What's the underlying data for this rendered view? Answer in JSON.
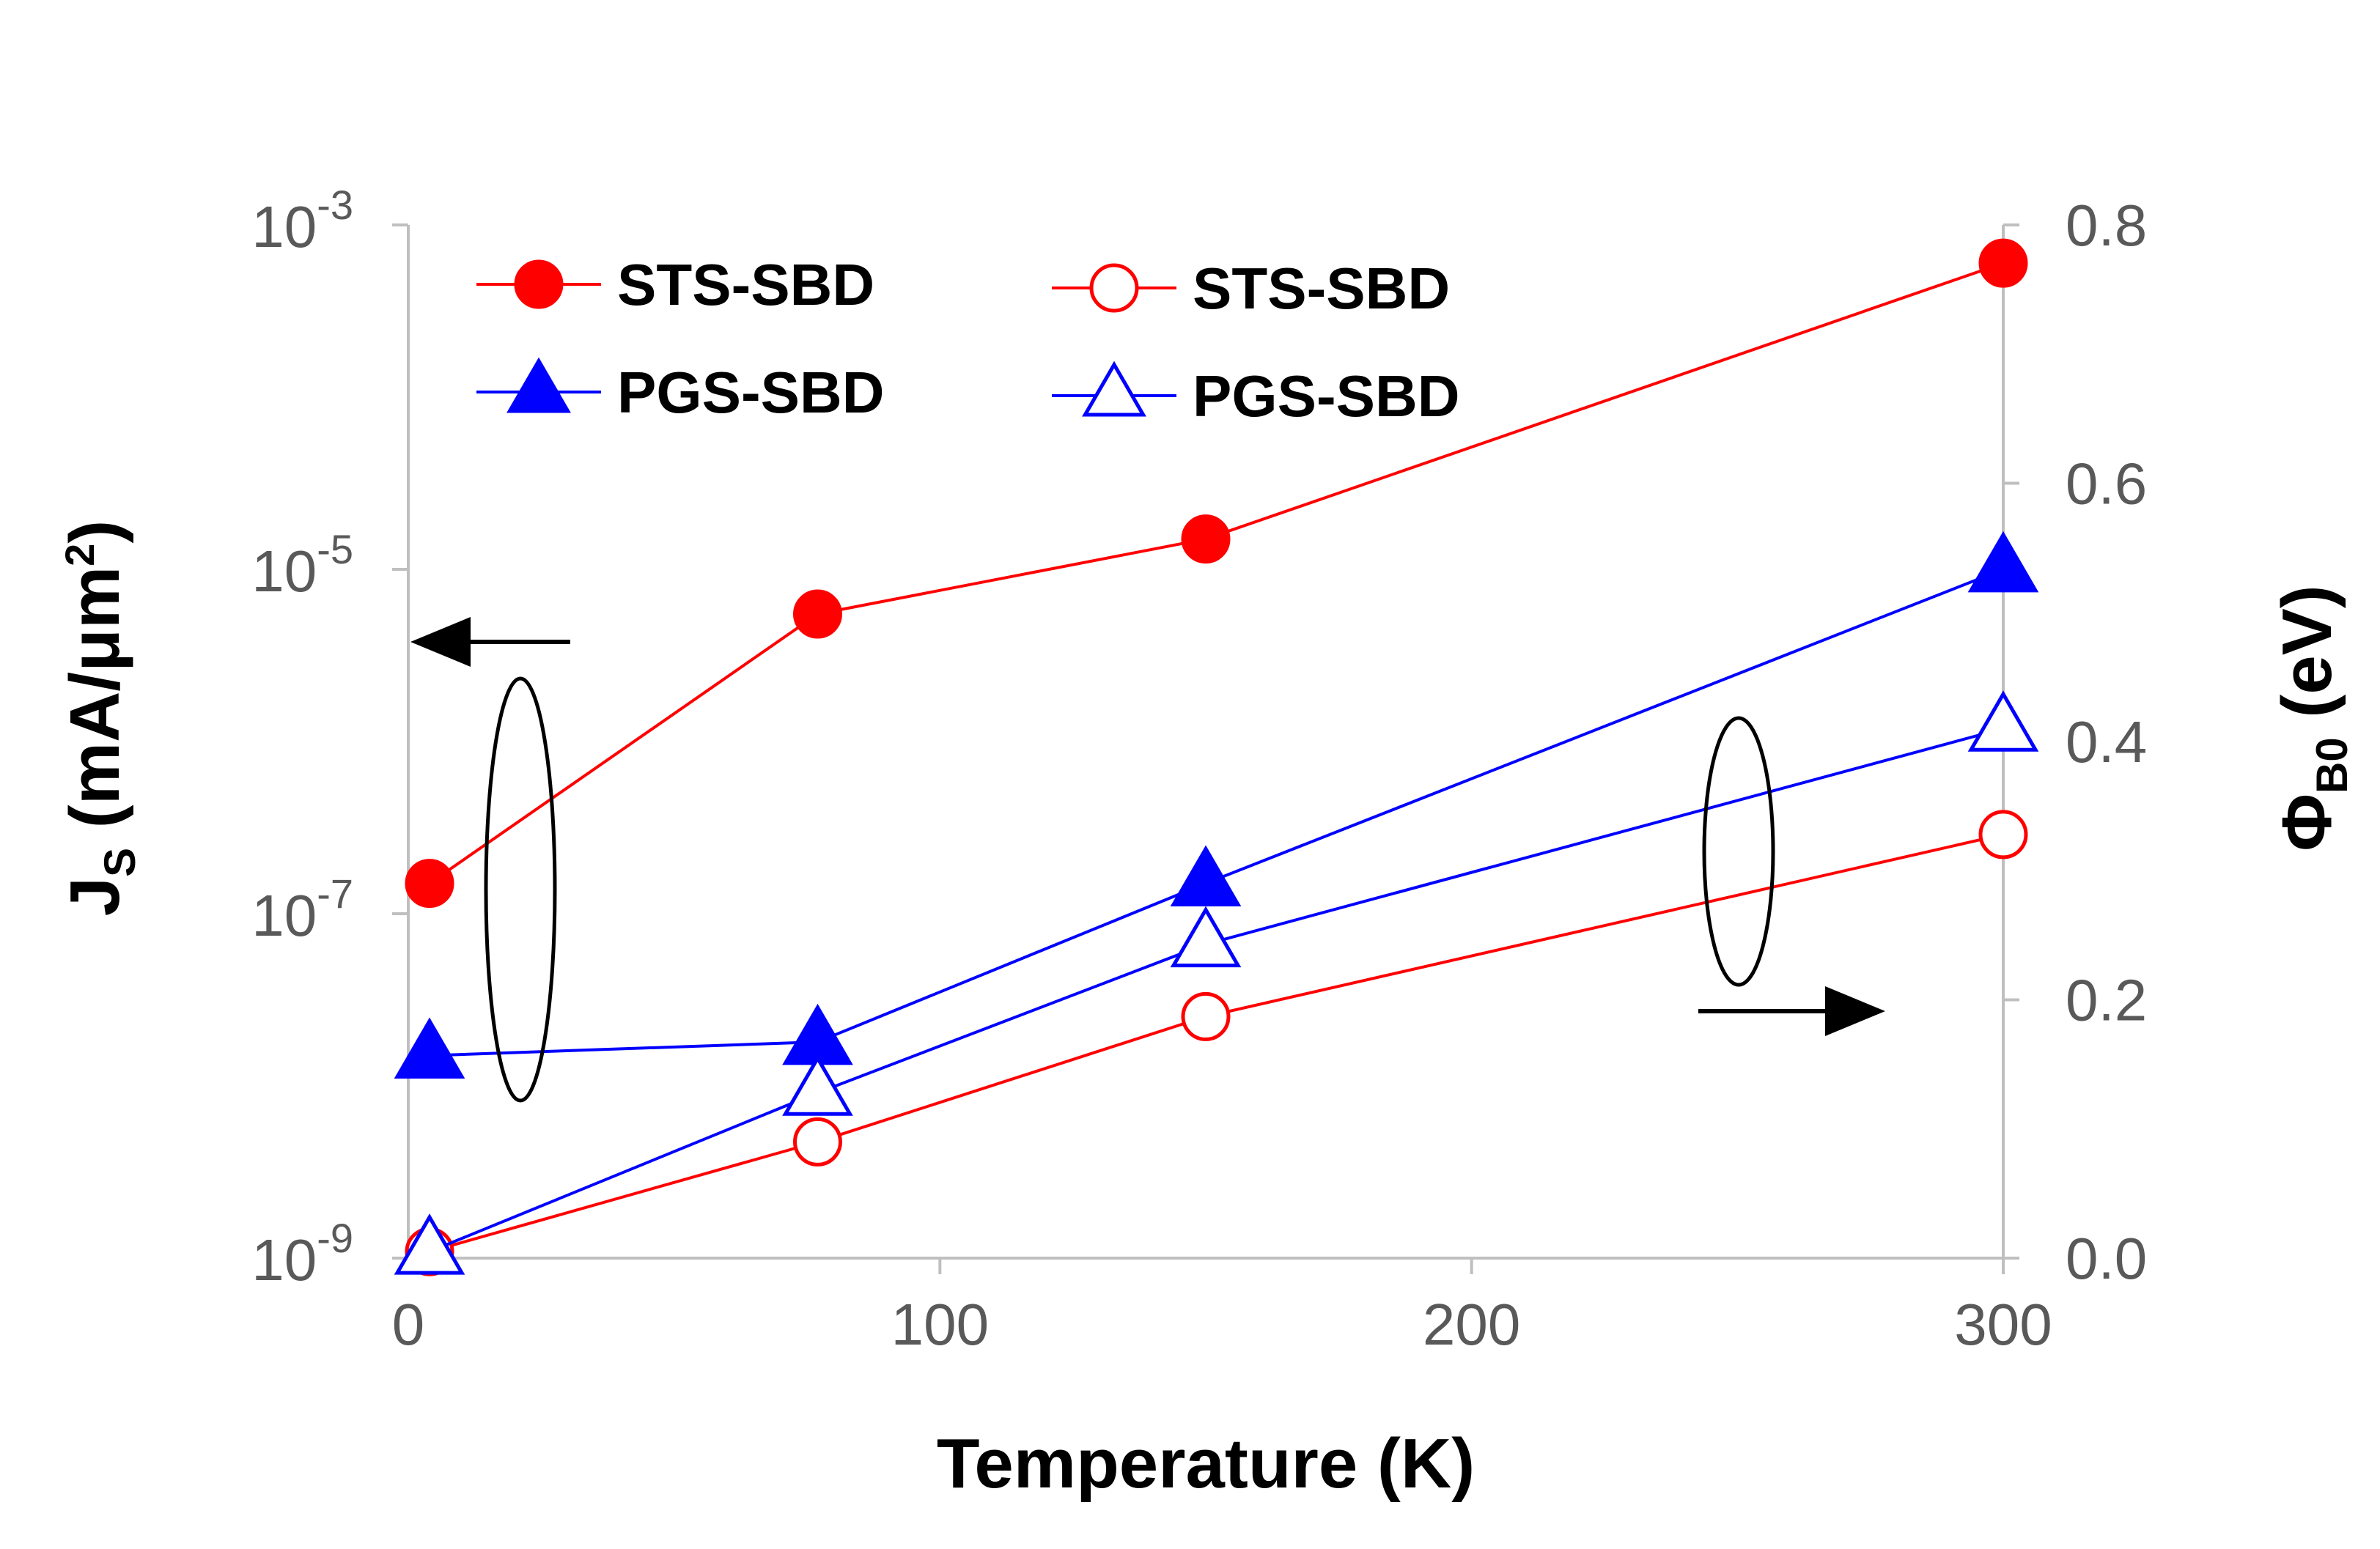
{
  "chart_data": {
    "type": "line",
    "xlabel": "Temperature (K)",
    "ylabel_left": {
      "base": "J",
      "sub": "S",
      "rest": " (mA/μm",
      "sup": "2",
      "close": ")"
    },
    "ylabel_right": {
      "base": "Φ",
      "sub": "B0",
      "rest": " (eV)"
    },
    "x_ticks": [
      "0",
      "100",
      "200",
      "300"
    ],
    "xlim": [
      0,
      300
    ],
    "y_left": {
      "scale": "log",
      "ylim": [
        1e-09,
        0.001
      ],
      "ticks": [
        {
          "base": "10",
          "exp": "-3"
        },
        {
          "base": "10",
          "exp": "-5"
        },
        {
          "base": "10",
          "exp": "-7"
        },
        {
          "base": "10",
          "exp": "-9"
        }
      ]
    },
    "y_right": {
      "scale": "linear",
      "ylim": [
        0.0,
        0.8
      ],
      "ticks": [
        "0.8",
        "0.6",
        "0.4",
        "0.2",
        "0.0"
      ]
    },
    "series": [
      {
        "name": "STS-SBD",
        "axis": "left",
        "color": "#ff0000",
        "marker": "circle",
        "filled": true,
        "x": [
          4,
          77,
          150,
          300
        ],
        "y": [
          1.5e-07,
          5.5e-06,
          1.5e-05,
          0.0006
        ]
      },
      {
        "name": "PGS-SBD",
        "axis": "left",
        "color": "#0000ff",
        "marker": "triangle",
        "filled": true,
        "x": [
          4,
          77,
          150,
          300
        ],
        "y": [
          1.5e-08,
          1.8e-08,
          1.5e-07,
          1e-05
        ]
      },
      {
        "name": "STS-SBD",
        "axis": "right",
        "color": "#ff0000",
        "marker": "circle",
        "filled": false,
        "x": [
          4,
          77,
          150,
          300
        ],
        "y": [
          0.005,
          0.09,
          0.187,
          0.328
        ]
      },
      {
        "name": "PGS-SBD",
        "axis": "right",
        "color": "#0000ff",
        "marker": "triangle",
        "filled": false,
        "x": [
          4,
          77,
          150,
          300
        ],
        "y": [
          0.005,
          0.128,
          0.243,
          0.41
        ]
      }
    ],
    "legend_order": [
      0,
      1,
      2,
      3
    ],
    "legend_position": "top-left",
    "grid": false
  }
}
